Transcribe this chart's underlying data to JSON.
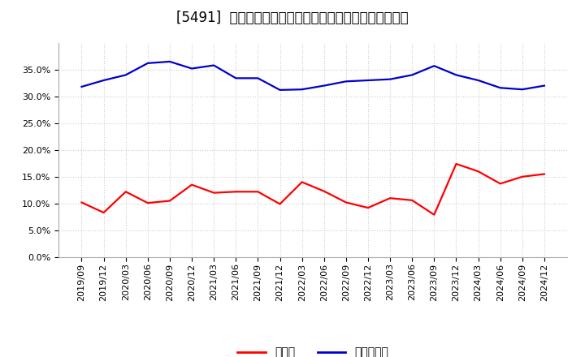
{
  "title": "[5491]  現預金、有利子負債の総資産に対する比率の推移",
  "x_labels": [
    "2019/09",
    "2019/12",
    "2020/03",
    "2020/06",
    "2020/09",
    "2020/12",
    "2021/03",
    "2021/06",
    "2021/09",
    "2021/12",
    "2022/03",
    "2022/06",
    "2022/09",
    "2022/12",
    "2023/03",
    "2023/06",
    "2023/09",
    "2023/12",
    "2024/03",
    "2024/06",
    "2024/09",
    "2024/12"
  ],
  "cash": [
    0.102,
    0.083,
    0.122,
    0.101,
    0.105,
    0.135,
    0.12,
    0.122,
    0.122,
    0.099,
    0.14,
    0.123,
    0.102,
    0.092,
    0.11,
    0.106,
    0.079,
    0.174,
    0.16,
    0.137,
    0.15,
    0.155
  ],
  "debt": [
    0.318,
    0.33,
    0.34,
    0.362,
    0.365,
    0.352,
    0.358,
    0.334,
    0.334,
    0.312,
    0.313,
    0.32,
    0.328,
    0.33,
    0.332,
    0.34,
    0.357,
    0.34,
    0.33,
    0.316,
    0.313,
    0.32
  ],
  "cash_color": "#ff0000",
  "debt_color": "#0000cd",
  "background_color": "#ffffff",
  "plot_background": "#ffffff",
  "grid_color": "#aaaaaa",
  "legend_cash": "現預金",
  "legend_debt": "有利子負債",
  "ylim": [
    0.0,
    0.4
  ],
  "yticks": [
    0.0,
    0.05,
    0.1,
    0.15,
    0.2,
    0.25,
    0.3,
    0.35
  ],
  "title_fontsize": 12,
  "tick_fontsize": 8,
  "legend_fontsize": 10,
  "line_width": 1.6
}
